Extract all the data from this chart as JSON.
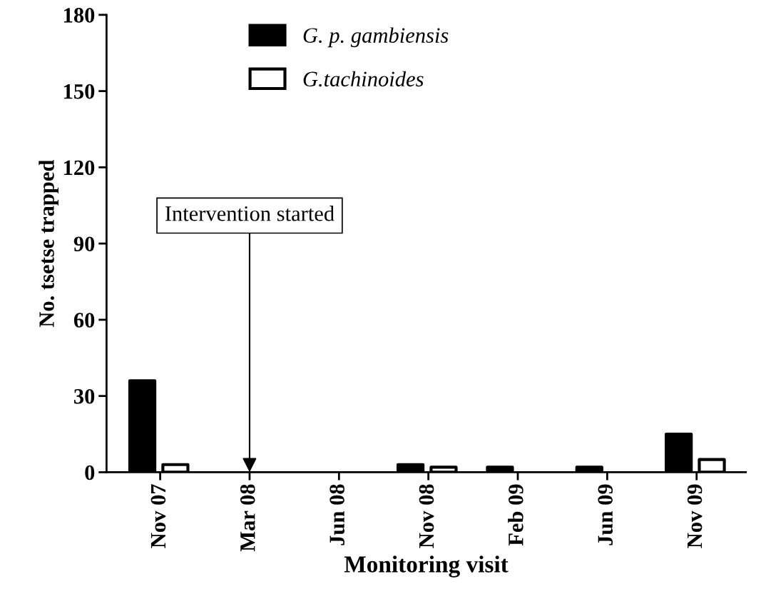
{
  "chart_data": {
    "type": "bar",
    "xlabel": "Monitoring visit",
    "ylabel": "No. tsetse trapped",
    "categories": [
      "Nov 07",
      "Mar 08",
      "Jun 08",
      "Nov 08",
      "Feb 09",
      "Jun 09",
      "Nov 09"
    ],
    "series": [
      {
        "name": "G. p. gambiensis",
        "color": "#000000",
        "values": [
          36,
          0,
          0,
          3,
          2,
          2,
          15
        ]
      },
      {
        "name": "G.tachinoides",
        "color": "#ffffff",
        "values": [
          3,
          0,
          0,
          2,
          0,
          0,
          5
        ]
      }
    ],
    "ylim": [
      0,
      180
    ],
    "yticks": [
      0,
      30,
      60,
      90,
      120,
      150,
      180
    ],
    "grid": false,
    "legend": "top",
    "annotations": [
      {
        "text": "Intervention started",
        "x": "Mar 08",
        "y": 0
      }
    ]
  }
}
